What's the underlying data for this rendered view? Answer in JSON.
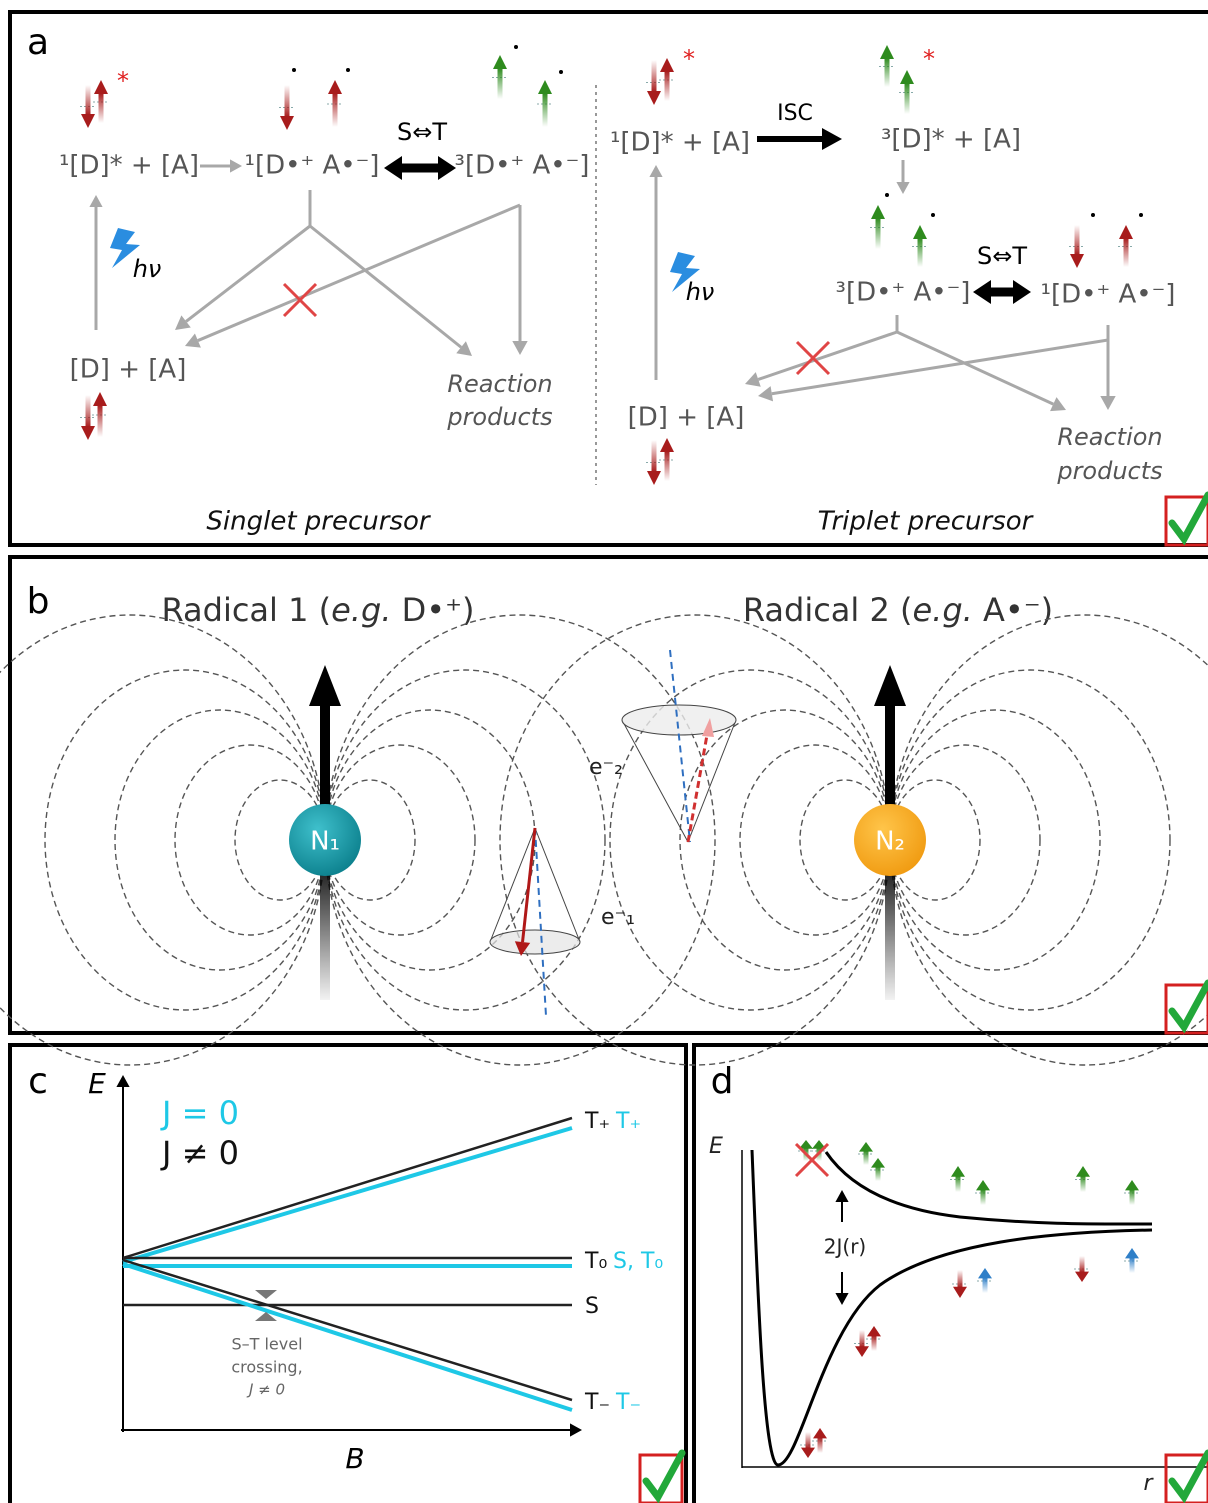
{
  "panel_a": {
    "label": "a",
    "star": "*",
    "singlet": {
      "excited": "¹[D]* + [A]",
      "singlet_pair": "¹[D•⁺  A•⁻]",
      "interconversion": "S⇔T",
      "triplet_pair": "³[D•⁺  A•⁻]",
      "excitation": "hν",
      "ground": "[D] + [A]",
      "products": [
        "Reaction",
        "products"
      ],
      "caption": "Singlet precursor"
    },
    "triplet": {
      "excited": "¹[D]* + [A]",
      "isc": "ISC",
      "triplet_excited": "³[D]* + [A]",
      "triplet_pair": "³[D•⁺  A•⁻]",
      "interconversion": "S⇔T",
      "singlet_pair": "¹[D•⁺  A•⁻]",
      "excitation": "hν",
      "ground": "[D] + [A]",
      "products": [
        "Reaction",
        "products"
      ],
      "caption": "Triplet precursor"
    }
  },
  "panel_b": {
    "label": "b",
    "radical_1": {
      "title": [
        "Radical 1 (",
        "e.g.",
        " D•⁺)"
      ],
      "nucleus": "N₁",
      "electron": "e⁻₁"
    },
    "radical_2": {
      "title": [
        "Radical 2 (",
        "e.g.",
        " A•⁻)"
      ],
      "nucleus": "N₂",
      "electron": "e⁻₂"
    }
  },
  "panel_c": {
    "label": "c",
    "y_axis": "E",
    "x_axis": "B",
    "legend": [
      "J = 0",
      "J ≠ 0"
    ],
    "levels": {
      "t_plus": [
        "T₊",
        "T₊"
      ],
      "t_zero": [
        "T₀",
        "S, T₀"
      ],
      "s": "S",
      "t_minus": [
        "T₋",
        "T₋"
      ]
    },
    "crossing_note": [
      "S–T level",
      "crossing,",
      "J ≠ 0"
    ]
  },
  "panel_d": {
    "label": "d",
    "y_axis": "E",
    "x_axis": "r",
    "exchange": "2J(r)"
  }
}
